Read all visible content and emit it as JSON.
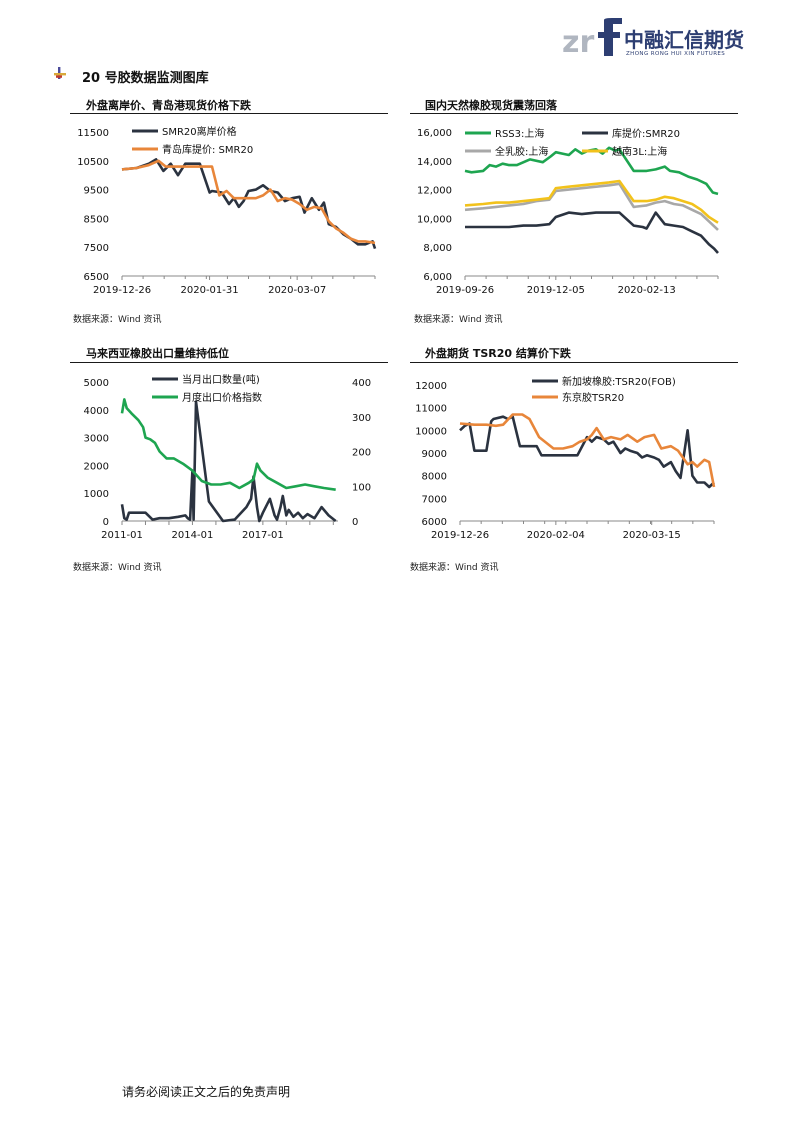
{
  "header": {
    "logo_mark": "zrf",
    "company_cn": "中融汇信期货",
    "company_en": "ZHONG RONG HUI XIN FUTURES"
  },
  "section": {
    "title": "20 号胶数据监测图库"
  },
  "charts": [
    {
      "title": "外盘离岸价、青岛港现货价格下跌",
      "source": "数据来源：Wind 资讯",
      "chart_data": {
        "type": "line",
        "x_ticks": [
          "2019-12-26",
          "2020-01-31",
          "2020-03-07"
        ],
        "x_range": [
          "2019-12-26",
          "2020-04-08"
        ],
        "ylim": [
          6500,
          11500
        ],
        "y_ticks": [
          11500,
          10500,
          9500,
          8500,
          7500,
          6500
        ],
        "grid": false,
        "legend": "top-left",
        "series": [
          {
            "name": "SMR20离岸价格",
            "color": "#2b3340",
            "x": [
              "2019-12-26",
              "2020-01-01",
              "2020-01-06",
              "2020-01-09",
              "2020-01-12",
              "2020-01-15",
              "2020-01-18",
              "2020-01-21",
              "2020-01-24",
              "2020-01-27",
              "2020-01-31",
              "2020-02-01",
              "2020-02-05",
              "2020-02-08",
              "2020-02-10",
              "2020-02-12",
              "2020-02-14",
              "2020-02-16",
              "2020-02-19",
              "2020-02-22",
              "2020-02-25",
              "2020-02-28",
              "2020-03-02",
              "2020-03-05",
              "2020-03-08",
              "2020-03-10",
              "2020-03-13",
              "2020-03-16",
              "2020-03-18",
              "2020-03-20",
              "2020-03-23",
              "2020-03-26",
              "2020-03-29",
              "2020-04-01",
              "2020-04-04",
              "2020-04-07",
              "2020-04-08"
            ],
            "values": [
              10200,
              10250,
              10400,
              10550,
              10150,
              10400,
              10000,
              10400,
              10400,
              10400,
              9400,
              9450,
              9400,
              9000,
              9200,
              8900,
              9100,
              9450,
              9500,
              9650,
              9450,
              9400,
              9100,
              9200,
              9250,
              8700,
              9200,
              8800,
              9050,
              8300,
              8200,
              7950,
              7800,
              7600,
              7600,
              7700,
              7450
            ]
          },
          {
            "name": "青岛库提价: SMR20",
            "color": "#e8863a",
            "x": [
              "2019-12-26",
              "2020-01-01",
              "2020-01-06",
              "2020-01-10",
              "2020-01-13",
              "2020-01-16",
              "2020-01-19",
              "2020-01-22",
              "2020-01-25",
              "2020-02-01",
              "2020-02-04",
              "2020-02-07",
              "2020-02-10",
              "2020-02-13",
              "2020-02-16",
              "2020-02-19",
              "2020-02-22",
              "2020-02-25",
              "2020-02-28",
              "2020-03-02",
              "2020-03-05",
              "2020-03-08",
              "2020-03-11",
              "2020-03-14",
              "2020-03-17",
              "2020-03-20",
              "2020-03-23",
              "2020-03-26",
              "2020-03-29",
              "2020-04-01",
              "2020-04-04",
              "2020-04-08"
            ],
            "values": [
              10200,
              10250,
              10350,
              10500,
              10300,
              10300,
              10300,
              10300,
              10300,
              10300,
              9300,
              9450,
              9200,
              9200,
              9200,
              9200,
              9300,
              9500,
              9100,
              9200,
              9150,
              9000,
              8800,
              8900,
              8850,
              8400,
              8150,
              8000,
              7800,
              7700,
              7700,
              7650
            ]
          }
        ]
      }
    },
    {
      "title": "国内天然橡胶现货震荡回落",
      "source": "数据来源：Wind 资讯",
      "chart_data": {
        "type": "line",
        "x_ticks": [
          "2019-09-26",
          "2019-12-05",
          "2020-02-13"
        ],
        "x_range": [
          "2019-09-26",
          "2020-04-08"
        ],
        "ylim": [
          6000,
          16000
        ],
        "y_ticks": [
          "16,000",
          "14,000",
          "12,000",
          "10,000",
          "8,000",
          "6,000"
        ],
        "grid": false,
        "legend": "top",
        "series": [
          {
            "name": "RSS3:上海",
            "color": "#1ea550",
            "x": [
              "2019-09-26",
              "2019-10-01",
              "2019-10-10",
              "2019-10-15",
              "2019-10-20",
              "2019-10-25",
              "2019-10-30",
              "2019-11-05",
              "2019-11-15",
              "2019-11-25",
              "2019-12-01",
              "2019-12-05",
              "2019-12-10",
              "2019-12-15",
              "2019-12-20",
              "2019-12-25",
              "2019-12-30",
              "2020-01-05",
              "2020-01-10",
              "2020-01-15",
              "2020-01-20",
              "2020-01-23",
              "2020-02-03",
              "2020-02-13",
              "2020-02-20",
              "2020-02-27",
              "2020-03-02",
              "2020-03-09",
              "2020-03-16",
              "2020-03-23",
              "2020-03-30",
              "2020-04-04",
              "2020-04-08"
            ],
            "values": [
              13300,
              13200,
              13300,
              13700,
              13600,
              13800,
              13700,
              13700,
              14100,
              13900,
              14300,
              14600,
              14500,
              14400,
              14800,
              14500,
              14700,
              14800,
              14500,
              14900,
              14700,
              14800,
              13300,
              13300,
              13400,
              13600,
              13300,
              13200,
              12900,
              12700,
              12400,
              11800,
              11700
            ]
          },
          {
            "name": "库提价:SMR20",
            "color": "#2b3340",
            "x": [
              "2019-09-26",
              "2019-10-10",
              "2019-10-20",
              "2019-10-30",
              "2019-11-10",
              "2019-11-20",
              "2019-11-30",
              "2019-12-05",
              "2019-12-15",
              "2019-12-25",
              "2020-01-05",
              "2020-01-15",
              "2020-01-23",
              "2020-02-03",
              "2020-02-10",
              "2020-02-13",
              "2020-02-20",
              "2020-02-27",
              "2020-03-05",
              "2020-03-12",
              "2020-03-19",
              "2020-03-26",
              "2020-04-01",
              "2020-04-05",
              "2020-04-08"
            ],
            "values": [
              9400,
              9400,
              9400,
              9400,
              9500,
              9500,
              9600,
              10100,
              10400,
              10300,
              10400,
              10400,
              10400,
              9500,
              9400,
              9300,
              10400,
              9600,
              9500,
              9400,
              9100,
              8800,
              8200,
              7900,
              7600
            ]
          },
          {
            "name": "全乳胶:上海",
            "color": "#a8a8a8",
            "x": [
              "2019-09-26",
              "2019-10-10",
              "2019-10-20",
              "2019-10-30",
              "2019-11-10",
              "2019-11-20",
              "2019-11-30",
              "2019-12-05",
              "2019-12-15",
              "2019-12-25",
              "2020-01-05",
              "2020-01-15",
              "2020-01-23",
              "2020-02-03",
              "2020-02-13",
              "2020-02-20",
              "2020-02-27",
              "2020-03-05",
              "2020-03-12",
              "2020-03-19",
              "2020-03-26",
              "2020-04-01",
              "2020-04-08"
            ],
            "values": [
              10600,
              10700,
              10800,
              10900,
              11000,
              11200,
              11300,
              11900,
              12000,
              12100,
              12200,
              12300,
              12400,
              10800,
              10900,
              11100,
              11200,
              11000,
              10900,
              10600,
              10300,
              9800,
              9200
            ]
          },
          {
            "name": "越南3L:上海",
            "color": "#f2c21c",
            "x": [
              "2019-09-26",
              "2019-10-10",
              "2019-10-20",
              "2019-10-30",
              "2019-11-10",
              "2019-11-20",
              "2019-11-30",
              "2019-12-05",
              "2019-12-15",
              "2019-12-25",
              "2020-01-05",
              "2020-01-15",
              "2020-01-23",
              "2020-02-03",
              "2020-02-13",
              "2020-02-20",
              "2020-02-27",
              "2020-03-05",
              "2020-03-12",
              "2020-03-19",
              "2020-03-26",
              "2020-04-01",
              "2020-04-08"
            ],
            "values": [
              10900,
              11000,
              11100,
              11100,
              11200,
              11300,
              11400,
              12100,
              12200,
              12300,
              12400,
              12500,
              12600,
              11200,
              11200,
              11300,
              11500,
              11400,
              11200,
              11000,
              10600,
              10100,
              9700
            ]
          }
        ]
      }
    },
    {
      "title": "马来西亚橡胶出口量维持低位",
      "source": "数据来源：Wind 资讯",
      "chart_data": {
        "type": "line",
        "x_ticks": [
          "2011-01",
          "2014-01",
          "2017-01"
        ],
        "x_range": [
          2011.0,
          2020.2
        ],
        "ylim": [
          0,
          5000
        ],
        "y_ticks": [
          5000,
          4000,
          3000,
          2000,
          1000,
          0
        ],
        "y2lim": [
          0,
          400
        ],
        "y2_ticks": [
          400,
          300,
          200,
          100,
          0
        ],
        "grid": false,
        "legend": "top",
        "series": [
          {
            "name": "当月出口数量(吨)",
            "color": "#2b3340",
            "axis": "left",
            "x": [
              2011.0,
              2011.1,
              2011.2,
              2011.3,
              2011.6,
              2012.0,
              2012.3,
              2012.6,
              2013.0,
              2013.4,
              2013.7,
              2013.8,
              2013.9,
              2014.0,
              2014.05,
              2014.15,
              2014.7,
              2015.3,
              2015.8,
              2016.3,
              2016.5,
              2016.6,
              2016.75,
              2016.85,
              2017.0,
              2017.3,
              2017.5,
              2017.6,
              2017.75,
              2017.85,
              2018.0,
              2018.1,
              2018.3,
              2018.5,
              2018.7,
              2018.9,
              2019.2,
              2019.5,
              2019.8,
              2020.1
            ],
            "values": [
              600,
              100,
              50,
              300,
              300,
              300,
              50,
              100,
              100,
              150,
              200,
              100,
              50,
              1800,
              50,
              4300,
              700,
              0,
              50,
              500,
              800,
              1600,
              500,
              0,
              300,
              800,
              200,
              50,
              500,
              900,
              200,
              400,
              150,
              300,
              100,
              250,
              100,
              500,
              200,
              0
            ]
          },
          {
            "name": "月度出口价格指数",
            "color": "#1ea550",
            "axis": "right",
            "x": [
              2011.0,
              2011.1,
              2011.2,
              2011.4,
              2011.7,
              2011.9,
              2012.0,
              2012.2,
              2012.4,
              2012.6,
              2012.9,
              2013.2,
              2013.6,
              2014.0,
              2014.4,
              2014.8,
              2015.2,
              2015.6,
              2016.0,
              2016.4,
              2016.6,
              2016.75,
              2016.9,
              2017.2,
              2017.6,
              2018.0,
              2018.4,
              2018.8,
              2019.2,
              2019.6,
              2020.1
            ],
            "values": [
              310,
              350,
              325,
              310,
              290,
              270,
              240,
              235,
              225,
              200,
              180,
              180,
              165,
              145,
              115,
              105,
              105,
              110,
              95,
              110,
              120,
              165,
              145,
              125,
              110,
              95,
              100,
              105,
              100,
              95,
              90
            ]
          }
        ]
      }
    },
    {
      "title": "外盘期货 TSR20 结算价下跌",
      "source": "数据来源：Wind 资讯",
      "chart_data": {
        "type": "line",
        "x_ticks": [
          "2019-12-26",
          "2020-02-04",
          "2020-03-15"
        ],
        "x_range": [
          "2019-12-26",
          "2020-04-10"
        ],
        "ylim": [
          6000,
          12000
        ],
        "y_ticks": [
          12000,
          11000,
          10000,
          9000,
          8000,
          7000,
          6000
        ],
        "grid": false,
        "legend": "top",
        "series": [
          {
            "name": "新加坡橡胶:TSR20(FOB)",
            "color": "#2b3340",
            "x": [
              "2019-12-26",
              "2019-12-28",
              "2019-12-30",
              "2020-01-01",
              "2020-01-03",
              "2020-01-06",
              "2020-01-08",
              "2020-01-09",
              "2020-01-13",
              "2020-01-15",
              "2020-01-17",
              "2020-01-20",
              "2020-01-22",
              "2020-01-24",
              "2020-01-27",
              "2020-01-29",
              "2020-02-03",
              "2020-02-07",
              "2020-02-10",
              "2020-02-13",
              "2020-02-17",
              "2020-02-19",
              "2020-02-21",
              "2020-02-24",
              "2020-02-26",
              "2020-02-28",
              "2020-03-02",
              "2020-03-04",
              "2020-03-06",
              "2020-03-09",
              "2020-03-11",
              "2020-03-13",
              "2020-03-16",
              "2020-03-18",
              "2020-03-20",
              "2020-03-23",
              "2020-03-25",
              "2020-03-27",
              "2020-03-30",
              "2020-04-01",
              "2020-04-03",
              "2020-04-06",
              "2020-04-08",
              "2020-04-10"
            ],
            "values": [
              10000,
              10200,
              10300,
              9100,
              9100,
              9100,
              10400,
              10500,
              10600,
              10500,
              10600,
              9300,
              9300,
              9300,
              9300,
              8900,
              8900,
              8900,
              8900,
              8900,
              9700,
              9500,
              9700,
              9600,
              9400,
              9500,
              9000,
              9200,
              9100,
              9000,
              8800,
              8900,
              8800,
              8700,
              8400,
              8600,
              8200,
              7900,
              10000,
              8000,
              7700,
              7700,
              7500,
              7700
            ]
          },
          {
            "name": "东京胶TSR20",
            "color": "#e8863a",
            "x": [
              "2019-12-26",
              "2020-01-01",
              "2020-01-06",
              "2020-01-10",
              "2020-01-13",
              "2020-01-17",
              "2020-01-21",
              "2020-01-24",
              "2020-01-28",
              "2020-02-03",
              "2020-02-07",
              "2020-02-11",
              "2020-02-14",
              "2020-02-17",
              "2020-02-19",
              "2020-02-21",
              "2020-02-24",
              "2020-02-27",
              "2020-03-02",
              "2020-03-05",
              "2020-03-09",
              "2020-03-12",
              "2020-03-16",
              "2020-03-19",
              "2020-03-23",
              "2020-03-26",
              "2020-03-30",
              "2020-04-01",
              "2020-04-03",
              "2020-04-06",
              "2020-04-08",
              "2020-04-10"
            ],
            "values": [
              10300,
              10250,
              10250,
              10200,
              10250,
              10700,
              10700,
              10500,
              9700,
              9200,
              9200,
              9300,
              9500,
              9600,
              9800,
              10100,
              9600,
              9700,
              9600,
              9800,
              9500,
              9700,
              9800,
              9200,
              9300,
              9100,
              8500,
              8600,
              8400,
              8700,
              8600,
              7500
            ]
          }
        ]
      }
    }
  ],
  "footer": {
    "disclaimer": "请务必阅读正文之后的免责声明"
  }
}
